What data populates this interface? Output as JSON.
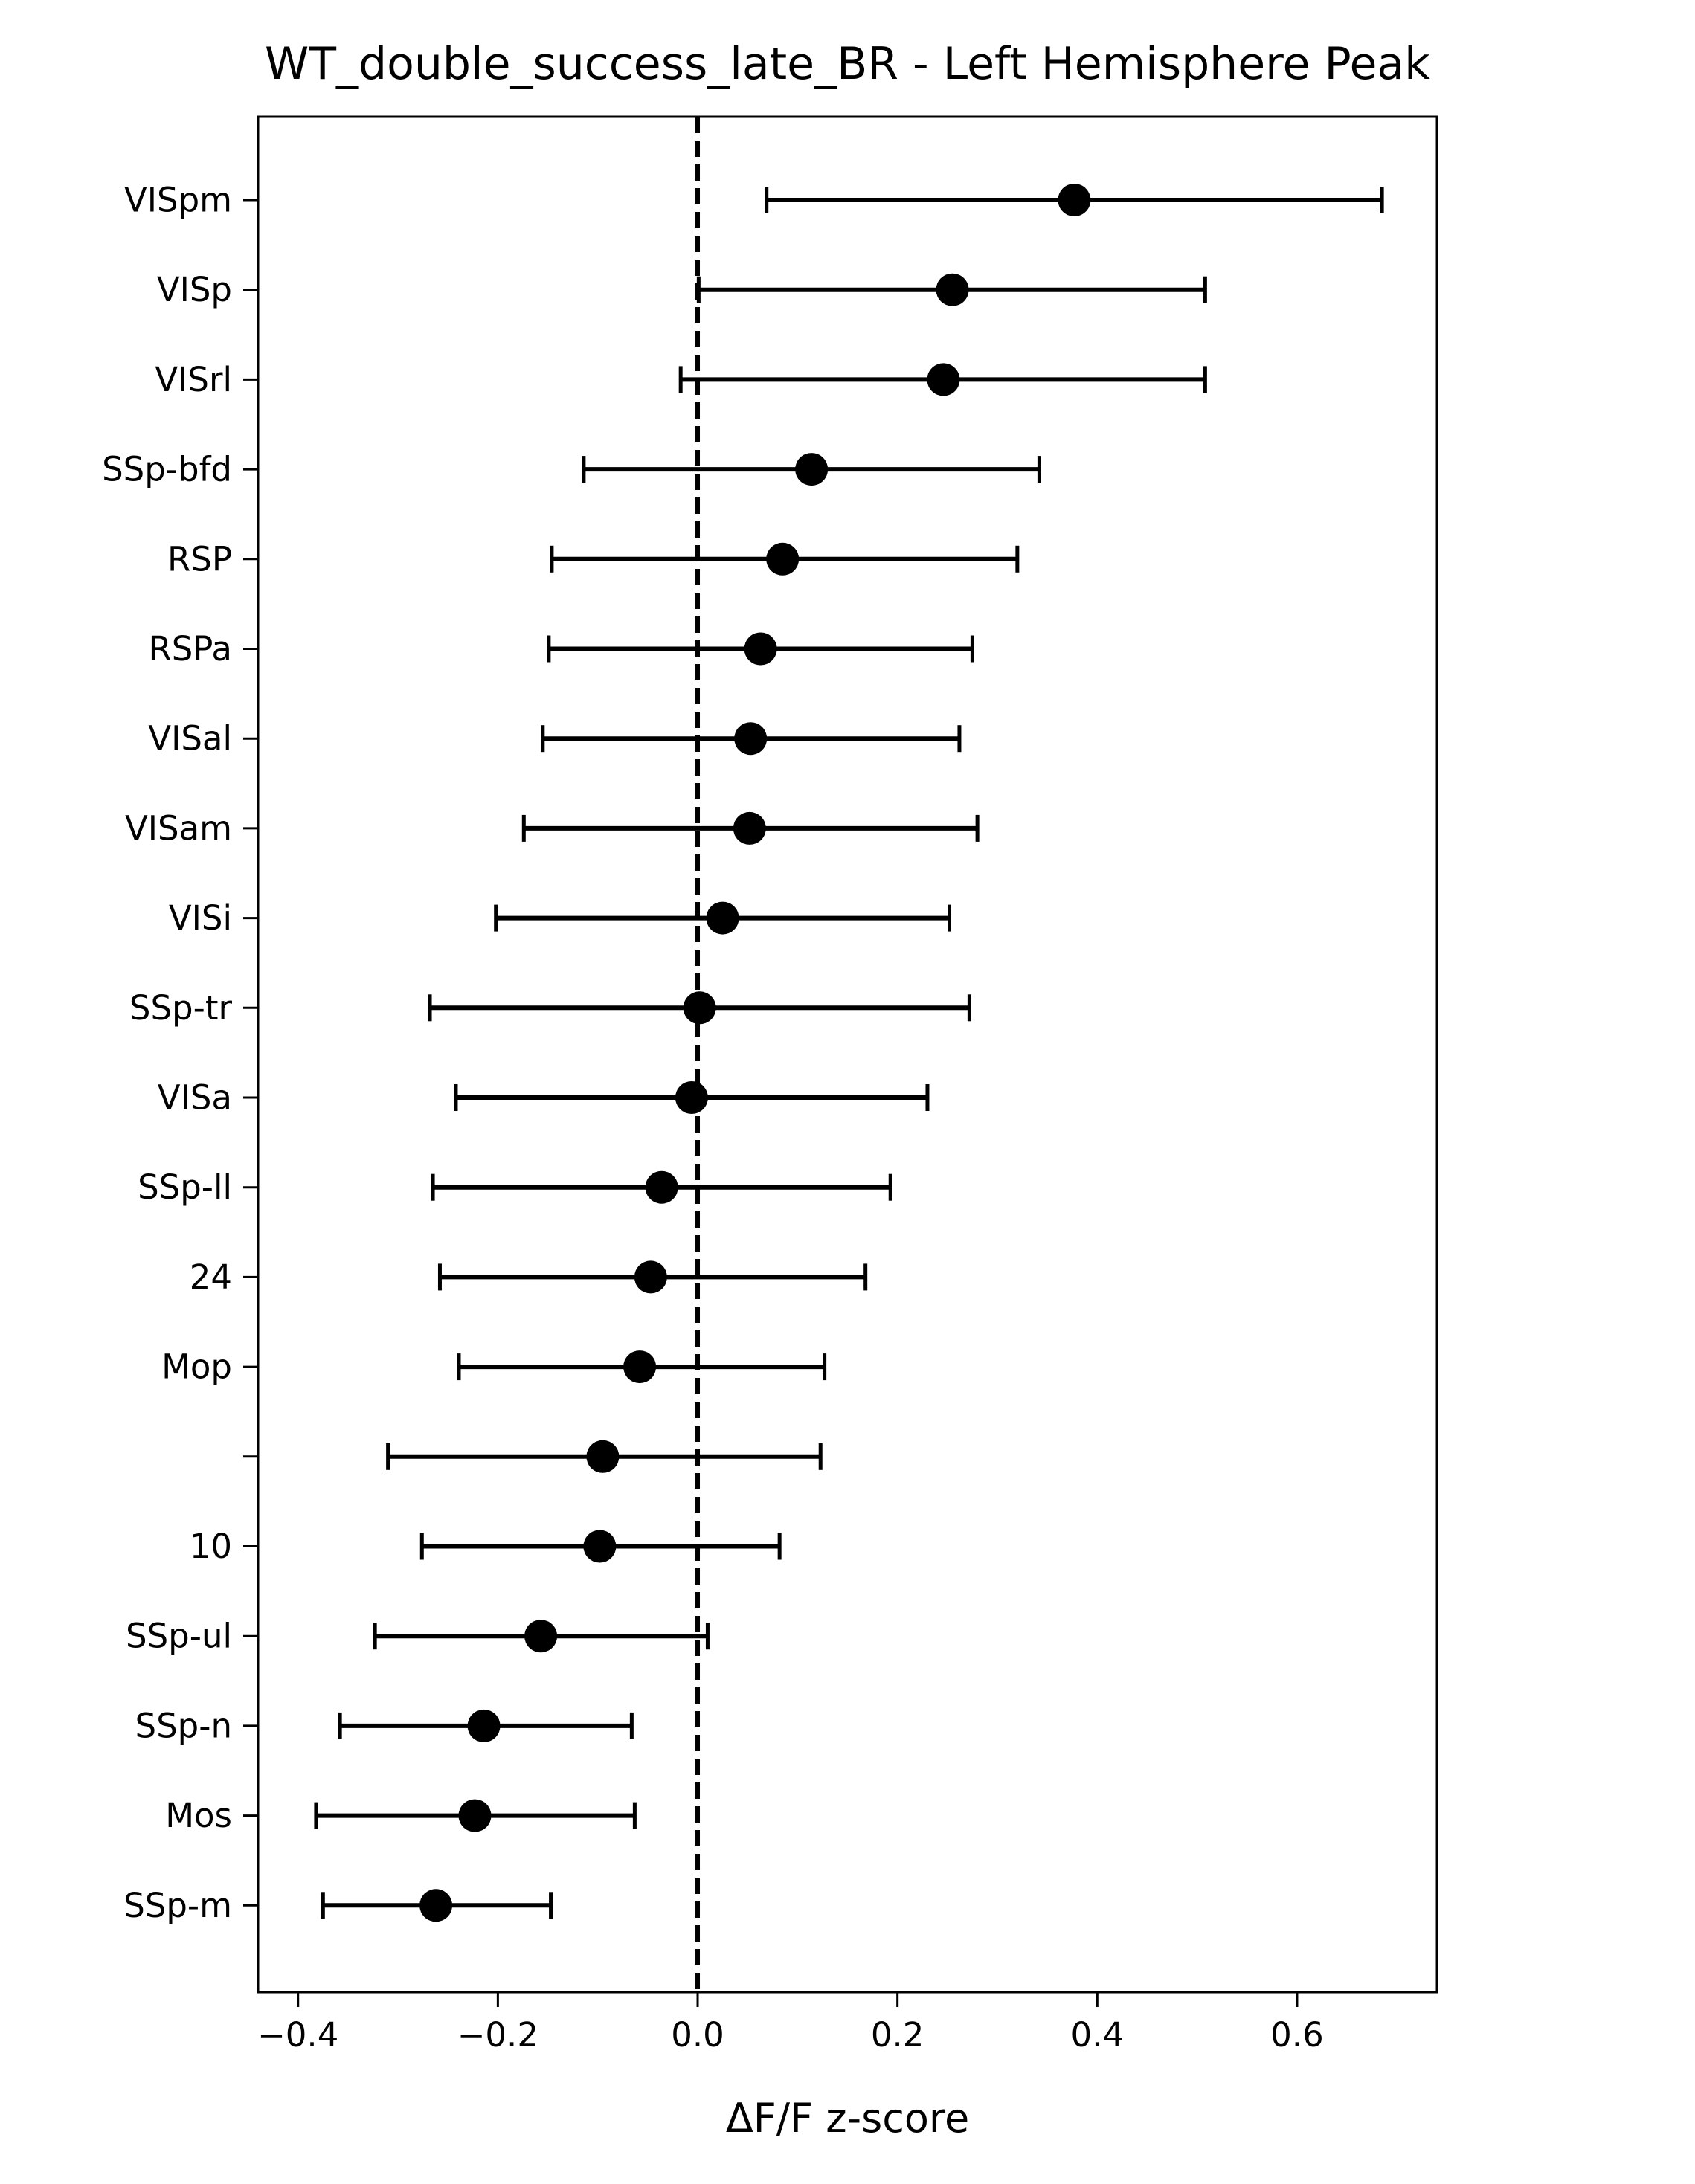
{
  "chart_data": {
    "type": "scatter",
    "subtype": "errorbar",
    "title": "WT_double_success_late_BR - Left Hemisphere Peak",
    "xlabel": "ΔF/F z-score",
    "ylabel": "",
    "xlim": [
      -0.44,
      0.74
    ],
    "xticks": [
      -0.4,
      -0.2,
      0.0,
      0.2,
      0.4,
      0.6
    ],
    "xtick_labels": [
      "−0.4",
      "−0.2",
      "0.0",
      "0.2",
      "0.4",
      "0.6"
    ],
    "reference_line": {
      "x": 0.0,
      "style": "dashed"
    },
    "grid": false,
    "legend": "none",
    "marker_color": "#000000",
    "categories": [
      "VISpm",
      "VISp",
      "VISrl",
      "SSp-bfd",
      "RSP",
      "RSPa",
      "VISal",
      "VISam",
      "VISi",
      "SSp-tr",
      "VISa",
      "SSp-ll",
      "24",
      "Mop",
      "",
      "10",
      "SSp-ul",
      "SSp-n",
      "Mos",
      "SSp-m"
    ],
    "values": [
      0.377,
      0.255,
      0.246,
      0.114,
      0.085,
      0.063,
      0.053,
      0.052,
      0.025,
      0.002,
      -0.006,
      -0.036,
      -0.047,
      -0.058,
      -0.095,
      -0.098,
      -0.157,
      -0.214,
      -0.223,
      -0.262
    ],
    "err_low": [
      0.069,
      0.001,
      -0.017,
      -0.114,
      -0.146,
      -0.149,
      -0.155,
      -0.174,
      -0.202,
      -0.268,
      -0.242,
      -0.265,
      -0.258,
      -0.239,
      -0.31,
      -0.276,
      -0.323,
      -0.358,
      -0.382,
      -0.375
    ],
    "err_high": [
      0.685,
      0.508,
      0.508,
      0.342,
      0.32,
      0.275,
      0.262,
      0.28,
      0.252,
      0.272,
      0.23,
      0.193,
      0.168,
      0.127,
      0.123,
      0.082,
      0.01,
      -0.066,
      -0.063,
      -0.147
    ]
  }
}
